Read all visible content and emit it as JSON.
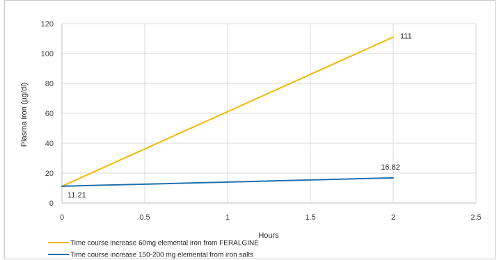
{
  "chart_data": {
    "type": "line",
    "title": "",
    "xlabel": "Hours",
    "ylabel": "Plasma iron (µg/dl)",
    "xlim": [
      0,
      2.5
    ],
    "ylim": [
      0,
      120
    ],
    "x_ticks": [
      "0",
      "0.5",
      "1",
      "1.5",
      "2",
      "2.5"
    ],
    "y_ticks": [
      "0",
      "20",
      "40",
      "60",
      "80",
      "100",
      "120"
    ],
    "grid": true,
    "legend_position": "bottom-left",
    "series": [
      {
        "name": "Time course increase 60mg elemental iron from FERALGINE",
        "color": "#f5b800",
        "points": [
          {
            "x": 0,
            "y": 11.21
          },
          {
            "x": 2,
            "y": 111
          }
        ],
        "labels": [
          "",
          "111"
        ]
      },
      {
        "name": "Time course increase 150-200 mg elemental from iron salts",
        "color": "#1f6fae",
        "points": [
          {
            "x": 0,
            "y": 11.21
          },
          {
            "x": 2,
            "y": 16.82
          }
        ],
        "labels": [
          "11.21",
          "16.82"
        ]
      }
    ]
  }
}
